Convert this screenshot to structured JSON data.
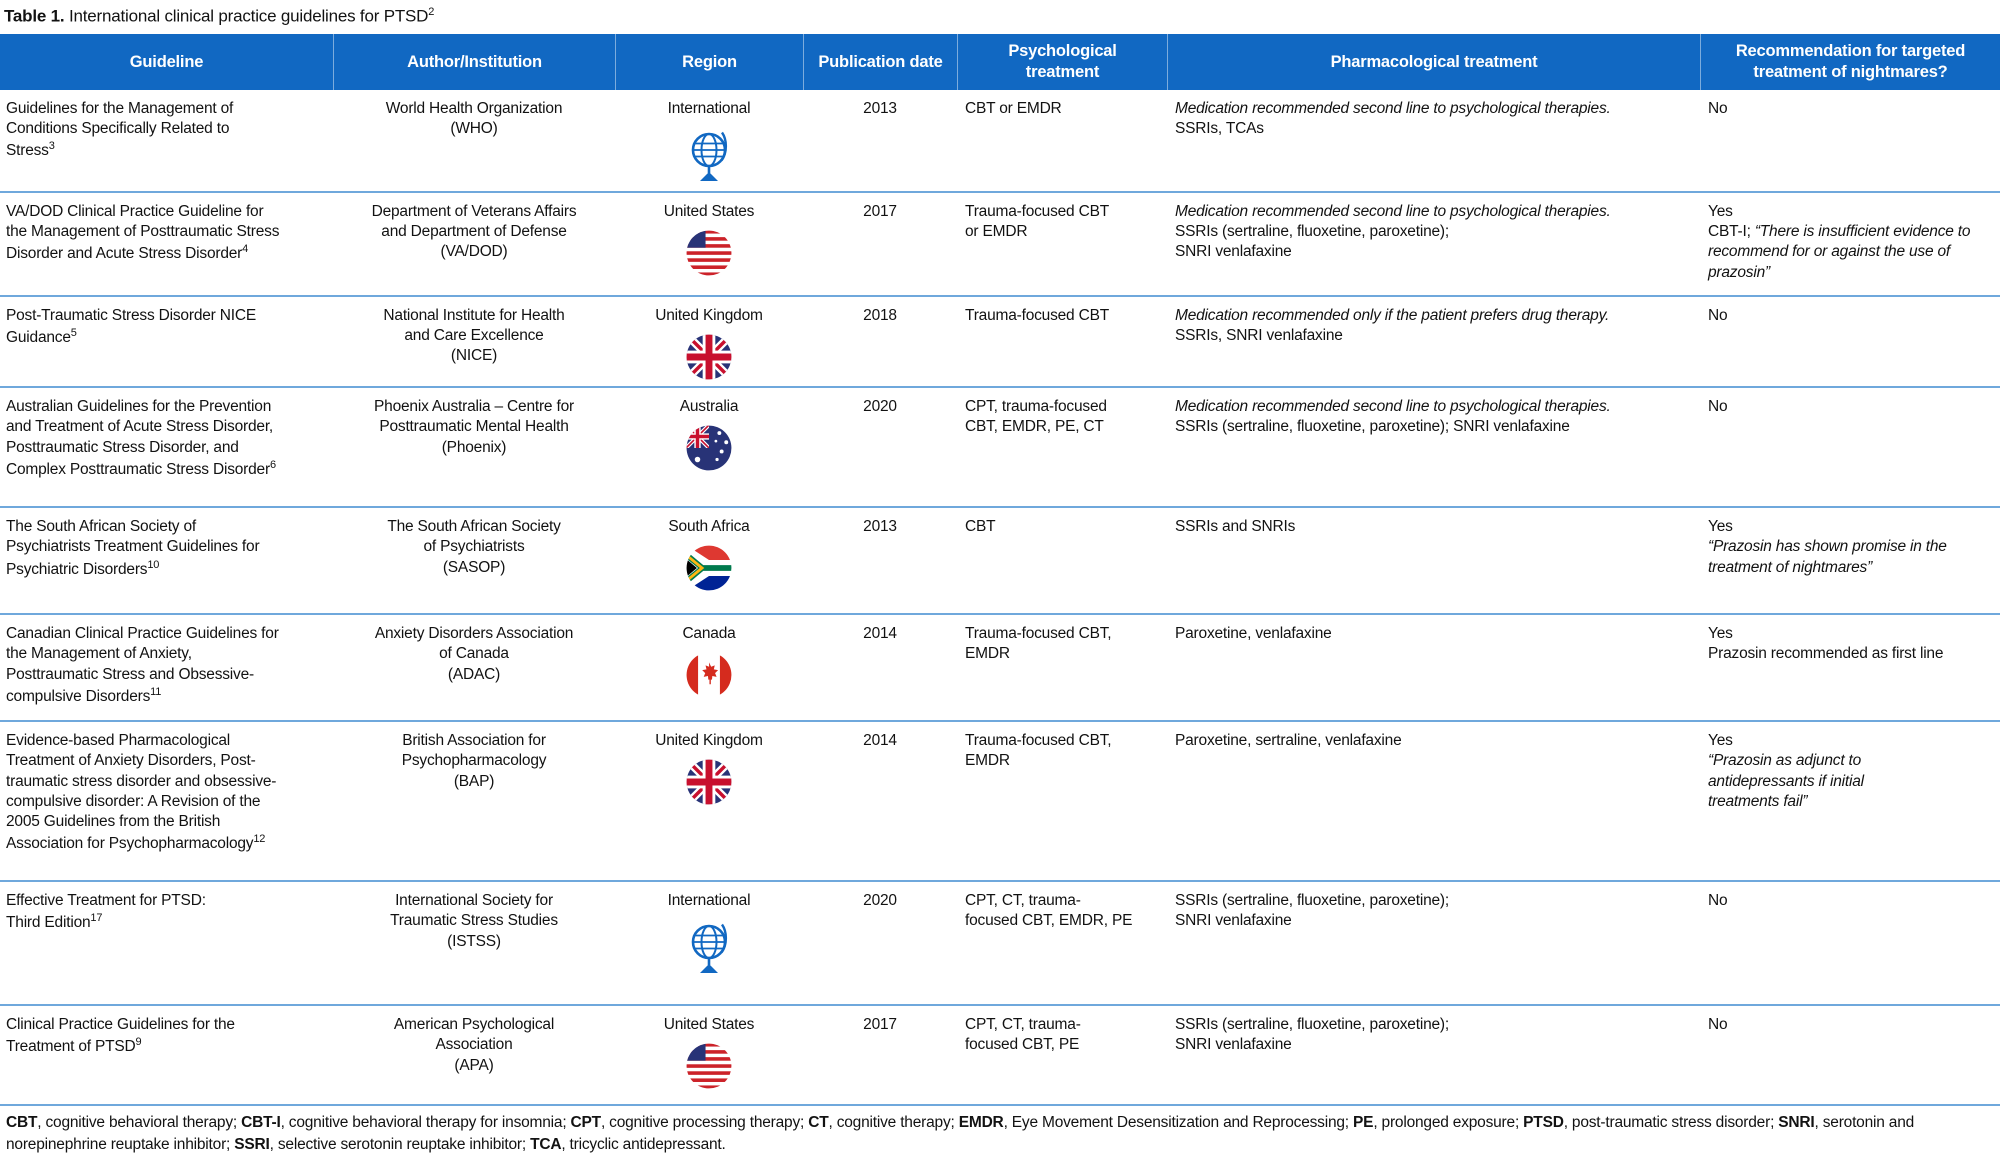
{
  "title": {
    "label": "Table 1.",
    "text": " International clinical practice guidelines for PTSD",
    "ref": "2"
  },
  "colors": {
    "header_bg": "#1168C2",
    "row_divider": "#6FA8DC",
    "accent_blue": "#1168C2"
  },
  "columns": [
    "Guideline",
    "Author/Institution",
    "Region",
    "Publication date",
    "Psychological treatment",
    "Pharmacological treatment",
    "Recommendation for targeted treatment of nightmares?"
  ],
  "rows": [
    {
      "guideline": "Guidelines for the Management of\nConditions Specifically Related to\nStress",
      "ref": "3",
      "author": "World Health Organization\n(WHO)",
      "region": "International",
      "region_icon": "globe-icon",
      "date": "2013",
      "psych": "CBT or EMDR",
      "pharm_italic": "Medication recommended second line to psychological therapies.",
      "pharm": "SSRIs, TCAs",
      "rec_answer": "No",
      "rec_prefix": "",
      "rec_quote": ""
    },
    {
      "guideline": "VA/DOD Clinical Practice Guideline for\nthe Management of Posttraumatic Stress\nDisorder and Acute Stress Disorder",
      "ref": "4",
      "author": "Department of Veterans Affairs\nand Department of Defense\n(VA/DOD)",
      "region": "United States",
      "region_icon": "us-flag-icon",
      "date": "2017",
      "psych": "Trauma-focused CBT\nor EMDR",
      "pharm_italic": "Medication recommended second line to psychological therapies.",
      "pharm": "SSRIs (sertraline, fluoxetine, paroxetine);\nSNRI venlafaxine",
      "rec_answer": "Yes",
      "rec_prefix": "CBT-I; ",
      "rec_quote": "“There is insufficient evidence to recommend for or against the use of prazosin”"
    },
    {
      "guideline": "Post-Traumatic Stress Disorder NICE\nGuidance",
      "ref": "5",
      "author": "National Institute for Health\nand Care Excellence\n(NICE)",
      "region": "United Kingdom",
      "region_icon": "uk-flag-icon",
      "date": "2018",
      "psych": "Trauma-focused CBT",
      "pharm_italic": "Medication recommended only if the patient prefers drug therapy.",
      "pharm": "SSRIs, SNRI venlafaxine",
      "rec_answer": "No",
      "rec_prefix": "",
      "rec_quote": ""
    },
    {
      "guideline": "Australian Guidelines for the Prevention\nand Treatment of Acute Stress Disorder,\nPosttraumatic Stress Disorder, and\nComplex Posttraumatic Stress Disorder",
      "ref": "6",
      "author": "Phoenix Australia – Centre for\nPosttraumatic Mental Health\n(Phoenix)",
      "region": "Australia",
      "region_icon": "australia-flag-icon",
      "date": "2020",
      "psych": "CPT, trauma-focused\nCBT, EMDR, PE, CT",
      "pharm_italic": "Medication recommended second line to psychological therapies.",
      "pharm": "SSRIs (sertraline, fluoxetine, paroxetine); SNRI venlafaxine",
      "rec_answer": "No",
      "rec_prefix": "",
      "rec_quote": ""
    },
    {
      "guideline": "The South African Society of\nPsychiatrists Treatment Guidelines for\nPsychiatric Disorders",
      "ref": "10",
      "author": "The South African Society\nof Psychiatrists\n(SASOP)",
      "region": "South Africa",
      "region_icon": "south-africa-flag-icon",
      "date": "2013",
      "psych": "CBT",
      "pharm_italic": "",
      "pharm": "SSRIs and SNRIs",
      "rec_answer": "Yes",
      "rec_prefix": "",
      "rec_quote": "“Prazosin has shown promise in the treatment of nightmares”"
    },
    {
      "guideline": "Canadian Clinical Practice Guidelines for\nthe Management of Anxiety,\nPosttraumatic Stress and Obsessive-\ncompulsive Disorders",
      "ref": "11",
      "author": "Anxiety Disorders Association\nof Canada\n(ADAC)",
      "region": "Canada",
      "region_icon": "canada-flag-icon",
      "date": "2014",
      "psych": "Trauma-focused CBT,\nEMDR",
      "pharm_italic": "",
      "pharm": "Paroxetine, venlafaxine",
      "rec_answer": "Yes",
      "rec_prefix": "Prazosin recommended as first line",
      "rec_quote": ""
    },
    {
      "guideline": "Evidence-based Pharmacological\nTreatment of Anxiety Disorders, Post-\ntraumatic stress disorder and obsessive-\ncompulsive disorder: A Revision of the\n2005 Guidelines from the British\nAssociation for Psychopharmacology",
      "ref": "12",
      "author": "British Association for\nPsychopharmacology\n(BAP)",
      "region": "United Kingdom",
      "region_icon": "uk-flag-icon",
      "date": "2014",
      "psych": "Trauma-focused CBT,\nEMDR",
      "pharm_italic": "",
      "pharm": "Paroxetine, sertraline, venlafaxine",
      "rec_answer": "Yes",
      "rec_prefix": "",
      "rec_quote": "“Prazosin as adjunct to\nantidepressants if initial\ntreatments fail”"
    },
    {
      "guideline": "Effective Treatment for PTSD:\nThird Edition",
      "ref": "17",
      "author": "International Society for\nTraumatic Stress Studies\n(ISTSS)",
      "region": "International",
      "region_icon": "globe-icon",
      "date": "2020",
      "psych": "CPT, CT, trauma-\nfocused CBT, EMDR, PE",
      "pharm_italic": "",
      "pharm": "SSRIs (sertraline, fluoxetine, paroxetine);\nSNRI venlafaxine",
      "rec_answer": "No",
      "rec_prefix": "",
      "rec_quote": ""
    },
    {
      "guideline": "Clinical Practice Guidelines for the\nTreatment of PTSD",
      "ref": "9",
      "author": "American Psychological\nAssociation\n(APA)",
      "region": "United States",
      "region_icon": "us-flag-icon",
      "date": "2017",
      "psych": "CPT, CT, trauma-\nfocused CBT, PE",
      "pharm_italic": "",
      "pharm": "SSRIs (sertraline, fluoxetine, paroxetine);\nSNRI venlafaxine",
      "rec_answer": "No",
      "rec_prefix": "",
      "rec_quote": ""
    }
  ],
  "footnote": [
    {
      "abbr": "CBT",
      "def": "cognitive behavioral therapy"
    },
    {
      "abbr": "CBT-I",
      "def": "cognitive behavioral therapy for insomnia"
    },
    {
      "abbr": "CPT",
      "def": "cognitive processing therapy"
    },
    {
      "abbr": "CT",
      "def": "cognitive therapy"
    },
    {
      "abbr": "EMDR",
      "def": "Eye Movement Desensitization and Reprocessing"
    },
    {
      "abbr": "PE",
      "def": "prolonged exposure"
    },
    {
      "abbr": "PTSD",
      "def": "post-traumatic stress disorder"
    },
    {
      "abbr": "SNRI",
      "def": "serotonin and norepinephrine reuptake inhibitor"
    },
    {
      "abbr": "SSRI",
      "def": "selective serotonin reuptake inhibitor"
    },
    {
      "abbr": "TCA",
      "def": "tricyclic antidepressant"
    }
  ]
}
